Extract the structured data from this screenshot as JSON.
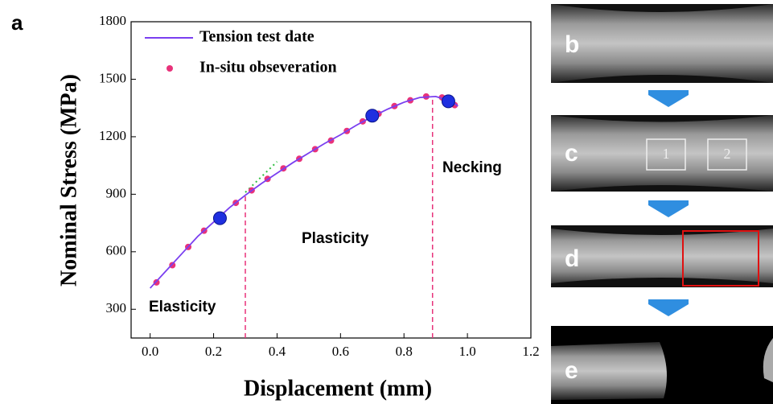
{
  "chart_data": {
    "type": "line",
    "panel_label": "a",
    "xlabel": "Displacement (mm)",
    "ylabel": "Nominal Stress (MPa)",
    "xlim": [
      -0.06,
      1.2
    ],
    "xticks": [
      {
        "value": 0,
        "label": "0.0"
      },
      0.2,
      0.4,
      0.6,
      0.8,
      {
        "value": 1,
        "label": "1.0"
      },
      1.2
    ],
    "ylim": [
      150,
      1800
    ],
    "yticks": [
      300,
      600,
      900,
      1200,
      1500,
      1800
    ],
    "series": [
      {
        "name": "Tension test date",
        "color": "#7a3ff0",
        "style": "line",
        "x": [
          0,
          0.05,
          0.1,
          0.15,
          0.2,
          0.25,
          0.3,
          0.35,
          0.4,
          0.45,
          0.5,
          0.55,
          0.6,
          0.65,
          0.7,
          0.75,
          0.8,
          0.85,
          0.9,
          0.95,
          0.97
        ],
        "values": [
          410,
          500,
          590,
          680,
          755,
          830,
          895,
          955,
          1010,
          1065,
          1115,
          1165,
          1210,
          1260,
          1305,
          1345,
          1380,
          1405,
          1410,
          1385,
          1360
        ]
      },
      {
        "name": "In-situ obseveration",
        "color": "#e8327a",
        "style": "scatter",
        "x": [
          0.02,
          0.07,
          0.12,
          0.17,
          0.22,
          0.27,
          0.32,
          0.37,
          0.42,
          0.47,
          0.52,
          0.57,
          0.62,
          0.67,
          0.72,
          0.77,
          0.82,
          0.87,
          0.92,
          0.96
        ],
        "values": [
          440,
          530,
          625,
          710,
          785,
          855,
          920,
          980,
          1035,
          1085,
          1135,
          1180,
          1230,
          1280,
          1320,
          1360,
          1390,
          1410,
          1405,
          1365
        ]
      }
    ],
    "highlight_points": {
      "color": "#1f2fe0",
      "x": [
        0.22,
        0.7,
        0.94
      ],
      "values": [
        775,
        1310,
        1385
      ]
    },
    "tangent_line": {
      "color": "#2fbf3f",
      "x": [
        0.3,
        0.4
      ],
      "values": [
        910,
        1070
      ]
    },
    "vlines": {
      "color": "#e8327a",
      "x": [
        0.3,
        0.89
      ],
      "values": [
        895,
        1410
      ]
    },
    "annotations": [
      "Elasticity",
      "Plasticity",
      "Necking"
    ],
    "image_panels": {
      "labels": [
        "b",
        "c",
        "d",
        "e"
      ],
      "boxes": [
        "1",
        "2"
      ]
    }
  }
}
